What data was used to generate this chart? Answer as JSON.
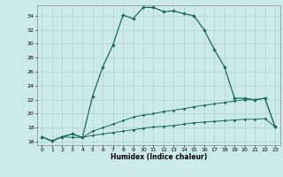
{
  "xlabel": "Humidex (Indice chaleur)",
  "xlim": [
    -0.5,
    23.5
  ],
  "ylim": [
    15.5,
    35.5
  ],
  "yticks": [
    16,
    18,
    20,
    22,
    24,
    26,
    28,
    30,
    32,
    34
  ],
  "xticks": [
    0,
    1,
    2,
    3,
    4,
    5,
    6,
    7,
    8,
    9,
    10,
    11,
    12,
    13,
    14,
    15,
    16,
    17,
    18,
    19,
    20,
    21,
    22,
    23
  ],
  "bg_color": "#cceaea",
  "line_color": "#1a6b5a",
  "grid_color": "#aacccc",
  "line1_x": [
    0,
    1,
    2,
    3,
    4,
    5,
    6,
    7,
    8,
    9,
    10,
    11,
    12,
    13,
    14,
    15,
    16,
    17,
    18,
    19,
    20,
    21,
    22,
    23
  ],
  "line1_y": [
    16.7,
    16.1,
    16.7,
    17.1,
    16.6,
    22.5,
    26.7,
    29.8,
    34.1,
    33.6,
    35.2,
    35.2,
    34.6,
    34.7,
    34.3,
    34.0,
    32.0,
    29.2,
    26.7,
    22.2,
    22.2,
    22.0,
    22.2,
    18.1
  ],
  "line2_x": [
    0,
    1,
    2,
    3,
    4,
    5,
    6,
    7,
    8,
    9,
    10,
    11,
    12,
    13,
    14,
    15,
    16,
    17,
    18,
    19,
    20,
    21,
    22,
    23
  ],
  "line2_y": [
    16.7,
    16.1,
    16.7,
    17.1,
    16.6,
    17.5,
    18.0,
    18.5,
    19.0,
    19.5,
    19.8,
    20.0,
    20.3,
    20.5,
    20.7,
    21.0,
    21.2,
    21.4,
    21.6,
    21.8,
    22.0,
    22.0,
    22.2,
    18.1
  ],
  "line3_x": [
    0,
    1,
    2,
    3,
    4,
    5,
    6,
    7,
    8,
    9,
    10,
    11,
    12,
    13,
    14,
    15,
    16,
    17,
    18,
    19,
    20,
    21,
    22,
    23
  ],
  "line3_y": [
    16.7,
    16.1,
    16.7,
    16.6,
    16.6,
    16.9,
    17.1,
    17.3,
    17.5,
    17.7,
    17.9,
    18.1,
    18.2,
    18.3,
    18.5,
    18.7,
    18.8,
    18.9,
    19.0,
    19.1,
    19.2,
    19.2,
    19.3,
    18.1
  ]
}
